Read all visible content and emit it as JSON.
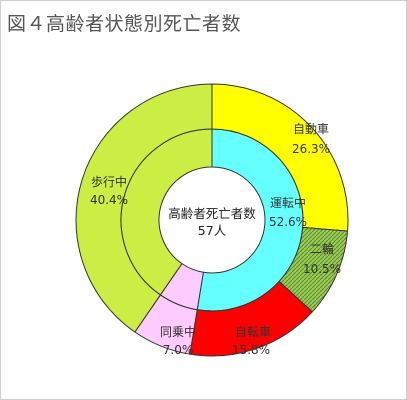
{
  "chart_data": {
    "type": "pie",
    "variant": "double-donut",
    "title": "図４高齢者状態別死亡者数",
    "center_label": "高齢者死亡者数",
    "center_value": "57人",
    "inner_ring": {
      "labels": [
        "運転中",
        "同乗中",
        "歩行中"
      ],
      "values": [
        52.6,
        7.0,
        40.4
      ],
      "value_labels": [
        "52.6%",
        "7.0%",
        "40.4%"
      ],
      "colors": [
        "#66FFFF",
        "#FFCCFF",
        "#CCEE44"
      ]
    },
    "outer_ring": {
      "labels": [
        "自動車",
        "二輪",
        "自転車",
        "同乗中",
        "歩行中"
      ],
      "values": [
        26.3,
        10.5,
        15.8,
        7.0,
        40.4
      ],
      "value_labels": [
        "26.3%",
        "10.5%",
        "15.8%",
        "7.0%",
        "40.4%"
      ],
      "colors": [
        "#FFFF00",
        "#99CC55",
        "#FF0000",
        "#FFCCFF",
        "#CCEE44"
      ]
    },
    "outer_hatched": [
      "二輪"
    ]
  }
}
